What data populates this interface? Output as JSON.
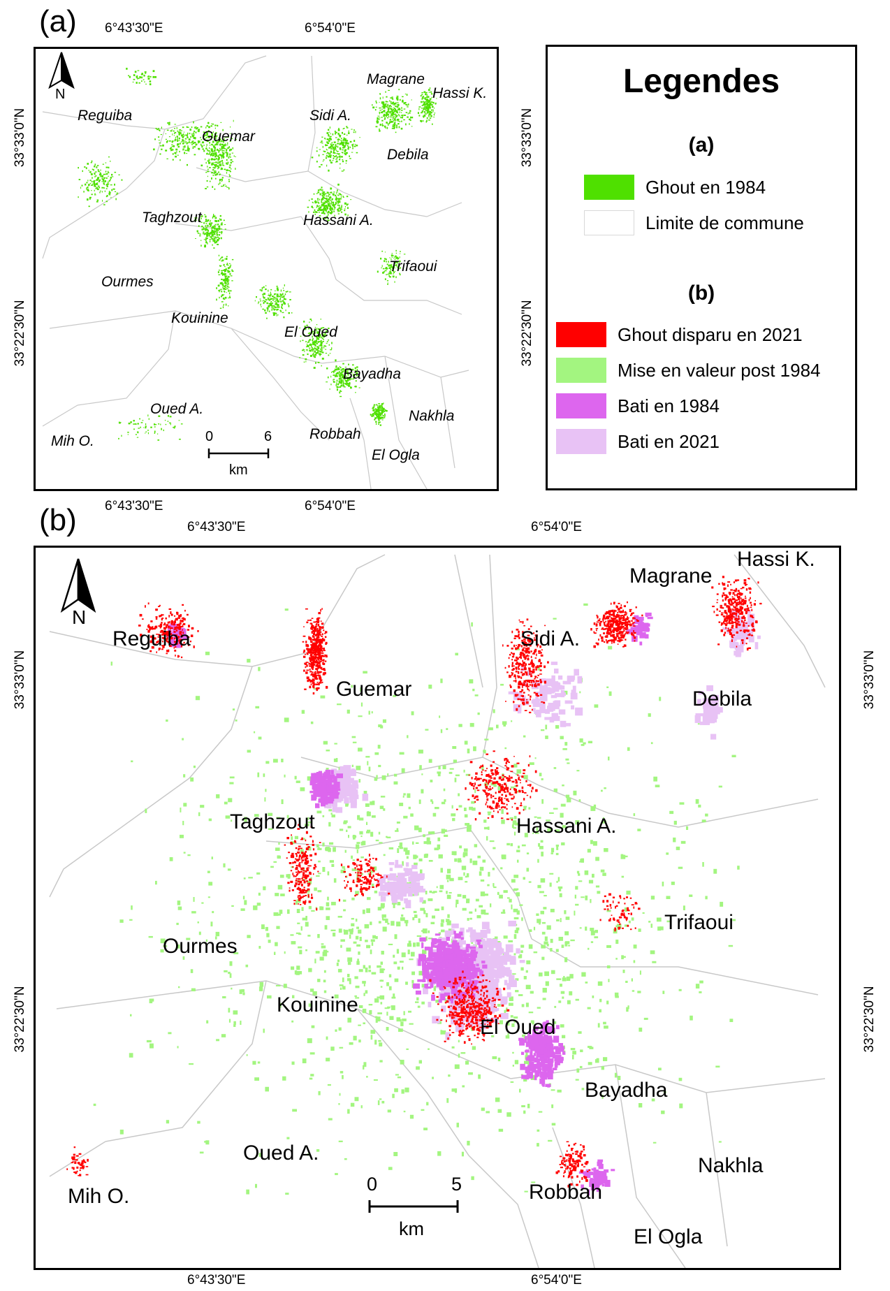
{
  "panels": {
    "a": {
      "letter": "(a)",
      "lon_labels": [
        "6°43'30\"E",
        "6°54'0\"E"
      ],
      "lat_labels": [
        "33°33'0\"N",
        "33°22'30\"N"
      ],
      "north": "N",
      "scale": {
        "start": "0",
        "end": "6",
        "unit": "km"
      },
      "places": [
        "Reguiba",
        "Guemar",
        "Sidi A.",
        "Magrane",
        "Hassi K.",
        "Debila",
        "Taghzout",
        "Hassani A.",
        "Trifaoui",
        "Ourmes",
        "Kouinine",
        "El Oued",
        "Bayadha",
        "Oued A.",
        "Nakhla",
        "Robbah",
        "Mih O.",
        "El Ogla"
      ]
    },
    "b": {
      "letter": "(b)",
      "lon_labels": [
        "6°43'30\"E",
        "6°54'0\"E"
      ],
      "lat_labels": [
        "33°33'0\"N",
        "33°22'30\"N"
      ],
      "north": "N",
      "scale": {
        "start": "0",
        "end": "5",
        "unit": "km"
      },
      "places": [
        "Reguiba",
        "Guemar",
        "Sidi A.",
        "Magrane",
        "Hassi K.",
        "Debila",
        "Taghzout",
        "Hassani A.",
        "Trifaoui",
        "Ourmes",
        "Kouinine",
        "El Oued",
        "Bayadha",
        "Oued A.",
        "Nakhla",
        "Robbah",
        "Mih O.",
        "El Ogla"
      ]
    }
  },
  "legend": {
    "title": "Legendes",
    "section_a": "(a)",
    "section_b": "(b)",
    "items_a": [
      {
        "label": "Ghout en 1984",
        "color": "#4fe000"
      },
      {
        "label": "Limite de commune",
        "color": "#ffffff"
      }
    ],
    "items_b": [
      {
        "label": "Ghout disparu en 2021",
        "color": "#ff0000"
      },
      {
        "label": "Mise en valeur post 1984",
        "color": "#a3f580"
      },
      {
        "label": "Bati en 1984",
        "color": "#dd66ee"
      },
      {
        "label": "Bati en 2021",
        "color": "#e8c2f5"
      }
    ]
  }
}
